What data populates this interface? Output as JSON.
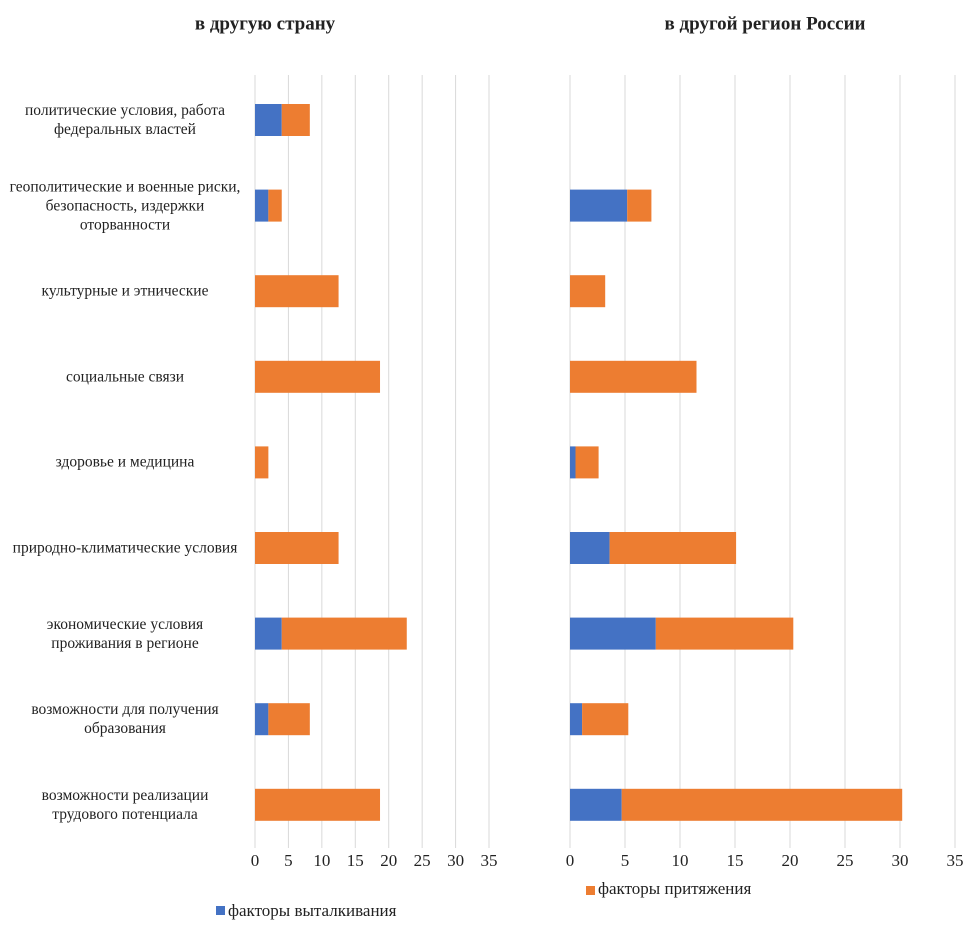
{
  "chart_data": [
    {
      "type": "bar",
      "orientation": "horizontal",
      "stacked": true,
      "title": "в другую страну",
      "categories": [
        "политические условия, работа федеральных властей",
        "геополитические и военные риски, безопасность, издержки оторванности",
        "культурные и этнические",
        "социальные связи",
        "здоровье и медицина",
        "природно-климатические условия",
        "экономические условия проживания в регионе",
        "возможности для получения образования",
        "возможности реализации трудового потенциала"
      ],
      "series": [
        {
          "name": "факторы выталкивания",
          "color": "#4472c4",
          "values": [
            4,
            2,
            0,
            0,
            0,
            0,
            4,
            2,
            0
          ]
        },
        {
          "name": "факторы притяжения",
          "color": "#ed7d31",
          "values": [
            4.2,
            2,
            12.5,
            18.7,
            2,
            12.5,
            18.7,
            6.2,
            18.7
          ]
        }
      ],
      "xlim": [
        0,
        35
      ],
      "xticks": [
        0,
        5,
        10,
        15,
        20,
        25,
        30,
        35
      ],
      "grid": true
    },
    {
      "type": "bar",
      "orientation": "horizontal",
      "stacked": true,
      "title": "в другой регион России",
      "series": [
        {
          "color": "#4472c4",
          "values": [
            0,
            5.2,
            0,
            0,
            0.5,
            3.6,
            7.8,
            1.1,
            4.7
          ]
        },
        {
          "color": "#ed7d31",
          "values": [
            0,
            2.2,
            3.2,
            11.5,
            2.1,
            11.5,
            12.5,
            4.2,
            25.5
          ]
        }
      ],
      "xlim": [
        0,
        35
      ],
      "xticks": [
        0,
        5,
        10,
        15,
        20,
        25,
        30,
        35
      ],
      "grid": true
    }
  ]
}
